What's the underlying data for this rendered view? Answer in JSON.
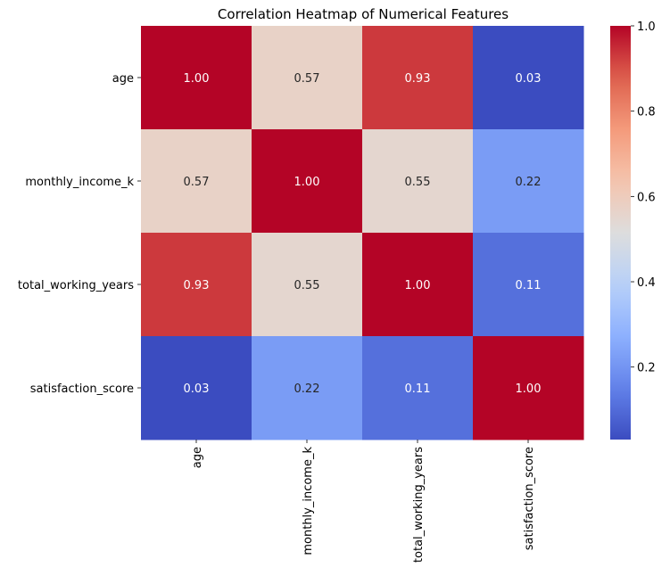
{
  "chart_data": {
    "type": "heatmap",
    "title": "Correlation Heatmap of Numerical Features",
    "rows": [
      "age",
      "monthly_income_k",
      "total_working_years",
      "satisfaction_score"
    ],
    "columns": [
      "age",
      "monthly_income_k",
      "total_working_years",
      "satisfaction_score"
    ],
    "values": [
      [
        1.0,
        0.57,
        0.93,
        0.03
      ],
      [
        0.57,
        1.0,
        0.55,
        0.22
      ],
      [
        0.93,
        0.55,
        1.0,
        0.11
      ],
      [
        0.03,
        0.22,
        0.11,
        1.0
      ]
    ],
    "value_format": "2 decimals",
    "colormap": "coolwarm",
    "colorbar": {
      "min": 0.03,
      "max": 1.0,
      "ticks": [
        0.2,
        0.4,
        0.6,
        0.8,
        1.0
      ],
      "tick_labels": [
        "0.2",
        "0.4",
        "0.6",
        "0.8",
        "1.0"
      ],
      "placement": "right"
    },
    "xlabel": "",
    "ylabel": "",
    "grid": false
  }
}
